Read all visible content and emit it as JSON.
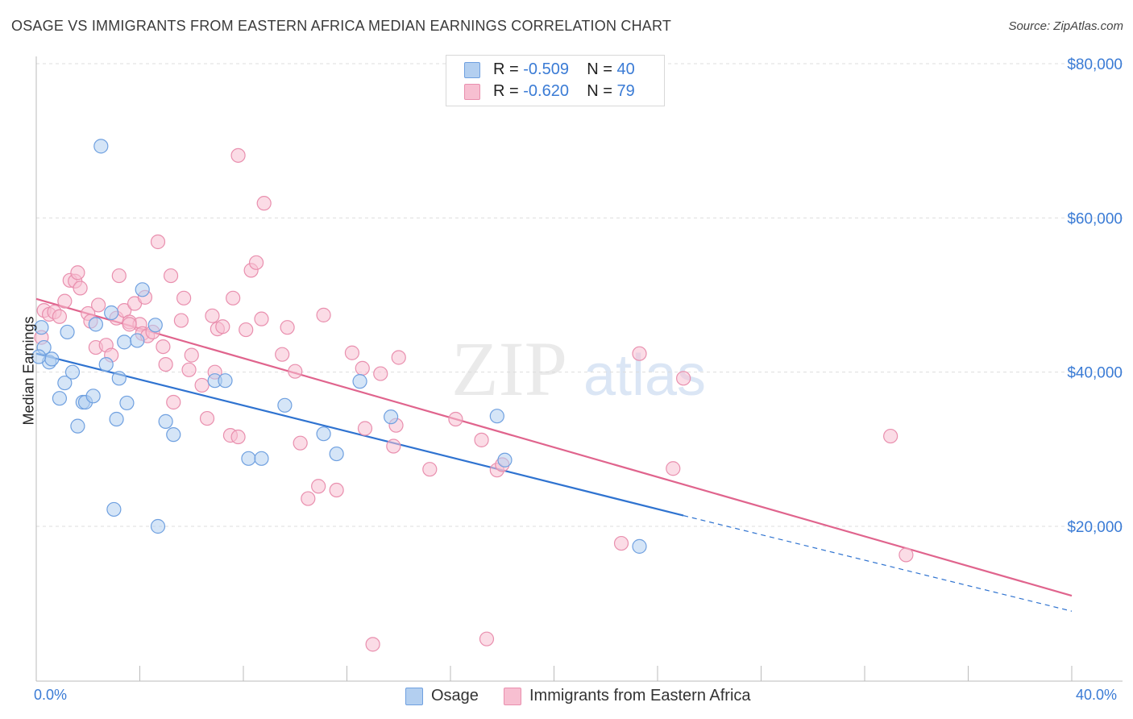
{
  "header": {
    "title": "OSAGE VS IMMIGRANTS FROM EASTERN AFRICA MEDIAN EARNINGS CORRELATION CHART",
    "source": "Source: ZipAtlas.com"
  },
  "legend_top": {
    "rows": [
      {
        "r_label": "R = ",
        "r_value": "-0.509",
        "n_label": "N = ",
        "n_value": "40",
        "color": "#b3cff0"
      },
      {
        "r_label": "R = ",
        "r_value": "-0.620",
        "n_label": "N = ",
        "n_value": "79",
        "color": "#f7bfd1"
      }
    ]
  },
  "legend_bottom": [
    {
      "label": "Osage",
      "color": "#b3cff0"
    },
    {
      "label": "Immigrants from Eastern Africa",
      "color": "#f7bfd1"
    }
  ],
  "x_axis": {
    "min_label": "0.0%",
    "max_label": "40.0%"
  },
  "watermark": {
    "zip": "ZIP",
    "atlas": "atlas"
  },
  "chart_data": {
    "type": "scatter",
    "title": "OSAGE VS IMMIGRANTS FROM EASTERN AFRICA MEDIAN EARNINGS CORRELATION CHART",
    "xlabel": "",
    "ylabel": "Median Earnings",
    "xlim": [
      0,
      40
    ],
    "ylim": [
      0,
      82000
    ],
    "y_ticks": [
      {
        "value": 20000,
        "label": "$20,000"
      },
      {
        "value": 40000,
        "label": "$40,000"
      },
      {
        "value": 60000,
        "label": "$60,000"
      },
      {
        "value": 80000,
        "label": "$80,000"
      }
    ],
    "grid": true,
    "series": [
      {
        "name": "Osage",
        "color": "#6fa0e0",
        "fill": "#b3cff0",
        "line_color": "#2f73d0",
        "trend": {
          "x0": 0,
          "y0": 42400,
          "x1": 25,
          "y1": 21400,
          "dash_to_x": 40,
          "dash_to_y": 9000
        },
        "points": [
          [
            0.2,
            45800
          ],
          [
            0.3,
            43200
          ],
          [
            0.5,
            41300
          ],
          [
            0.6,
            41700
          ],
          [
            0.9,
            36600
          ],
          [
            1.1,
            38600
          ],
          [
            1.2,
            45200
          ],
          [
            1.4,
            40000
          ],
          [
            1.6,
            33000
          ],
          [
            1.8,
            36100
          ],
          [
            1.9,
            36100
          ],
          [
            2.2,
            36900
          ],
          [
            2.3,
            46200
          ],
          [
            2.5,
            69300
          ],
          [
            2.7,
            41000
          ],
          [
            2.9,
            47700
          ],
          [
            3.0,
            22200
          ],
          [
            3.1,
            33900
          ],
          [
            3.2,
            39200
          ],
          [
            3.4,
            43900
          ],
          [
            3.5,
            36000
          ],
          [
            3.9,
            44100
          ],
          [
            4.1,
            50700
          ],
          [
            4.6,
            46100
          ],
          [
            4.7,
            20000
          ],
          [
            5.0,
            33600
          ],
          [
            5.3,
            31900
          ],
          [
            6.9,
            38900
          ],
          [
            7.3,
            38900
          ],
          [
            8.2,
            28800
          ],
          [
            8.7,
            28800
          ],
          [
            9.6,
            35700
          ],
          [
            11.1,
            32000
          ],
          [
            11.6,
            29400
          ],
          [
            12.5,
            38800
          ],
          [
            13.7,
            34200
          ],
          [
            17.8,
            34300
          ],
          [
            18.1,
            28600
          ],
          [
            23.3,
            17400
          ],
          [
            0.1,
            42000
          ]
        ]
      },
      {
        "name": "Immigrants from Eastern Africa",
        "color": "#e98fae",
        "fill": "#f7bfd1",
        "line_color": "#e0648d",
        "trend": {
          "x0": 0,
          "y0": 49500,
          "x1": 40,
          "y1": 11000
        },
        "points": [
          [
            0.2,
            44500
          ],
          [
            0.3,
            48000
          ],
          [
            0.5,
            47500
          ],
          [
            0.7,
            47800
          ],
          [
            0.9,
            47200
          ],
          [
            1.1,
            49200
          ],
          [
            1.3,
            51900
          ],
          [
            1.5,
            51800
          ],
          [
            1.6,
            52900
          ],
          [
            1.7,
            50900
          ],
          [
            2.0,
            47600
          ],
          [
            2.1,
            46600
          ],
          [
            2.3,
            43200
          ],
          [
            2.4,
            48700
          ],
          [
            2.7,
            43500
          ],
          [
            2.9,
            42200
          ],
          [
            3.1,
            47000
          ],
          [
            3.2,
            52500
          ],
          [
            3.4,
            48000
          ],
          [
            3.6,
            46500
          ],
          [
            3.8,
            48900
          ],
          [
            4.0,
            46200
          ],
          [
            4.1,
            45000
          ],
          [
            4.2,
            49700
          ],
          [
            4.3,
            44700
          ],
          [
            4.5,
            45200
          ],
          [
            4.7,
            56900
          ],
          [
            4.9,
            43300
          ],
          [
            5.0,
            41000
          ],
          [
            5.2,
            52500
          ],
          [
            5.3,
            36100
          ],
          [
            5.6,
            46700
          ],
          [
            5.7,
            49600
          ],
          [
            5.9,
            40300
          ],
          [
            6.0,
            42200
          ],
          [
            6.4,
            38300
          ],
          [
            6.6,
            34000
          ],
          [
            6.8,
            47300
          ],
          [
            6.9,
            40000
          ],
          [
            7.0,
            45600
          ],
          [
            7.2,
            45900
          ],
          [
            7.5,
            31800
          ],
          [
            7.6,
            49600
          ],
          [
            7.8,
            31600
          ],
          [
            7.8,
            68100
          ],
          [
            8.1,
            45500
          ],
          [
            8.3,
            53200
          ],
          [
            8.5,
            54200
          ],
          [
            8.7,
            46900
          ],
          [
            8.8,
            61900
          ],
          [
            9.5,
            42300
          ],
          [
            9.7,
            45800
          ],
          [
            10.0,
            40100
          ],
          [
            10.2,
            30800
          ],
          [
            10.5,
            23600
          ],
          [
            10.9,
            25200
          ],
          [
            11.1,
            47400
          ],
          [
            11.6,
            24700
          ],
          [
            12.2,
            42500
          ],
          [
            12.6,
            40500
          ],
          [
            12.7,
            32700
          ],
          [
            13.0,
            4700
          ],
          [
            14.0,
            41900
          ],
          [
            13.9,
            33100
          ],
          [
            13.8,
            30400
          ],
          [
            15.2,
            27400
          ],
          [
            16.2,
            33900
          ],
          [
            17.2,
            31200
          ],
          [
            17.4,
            5400
          ],
          [
            17.8,
            27300
          ],
          [
            18.0,
            28000
          ],
          [
            22.6,
            17800
          ],
          [
            23.3,
            42400
          ],
          [
            24.6,
            27500
          ],
          [
            25.0,
            39200
          ],
          [
            33.0,
            31700
          ],
          [
            33.6,
            16300
          ],
          [
            13.3,
            39800
          ],
          [
            3.6,
            46200
          ]
        ]
      }
    ]
  }
}
